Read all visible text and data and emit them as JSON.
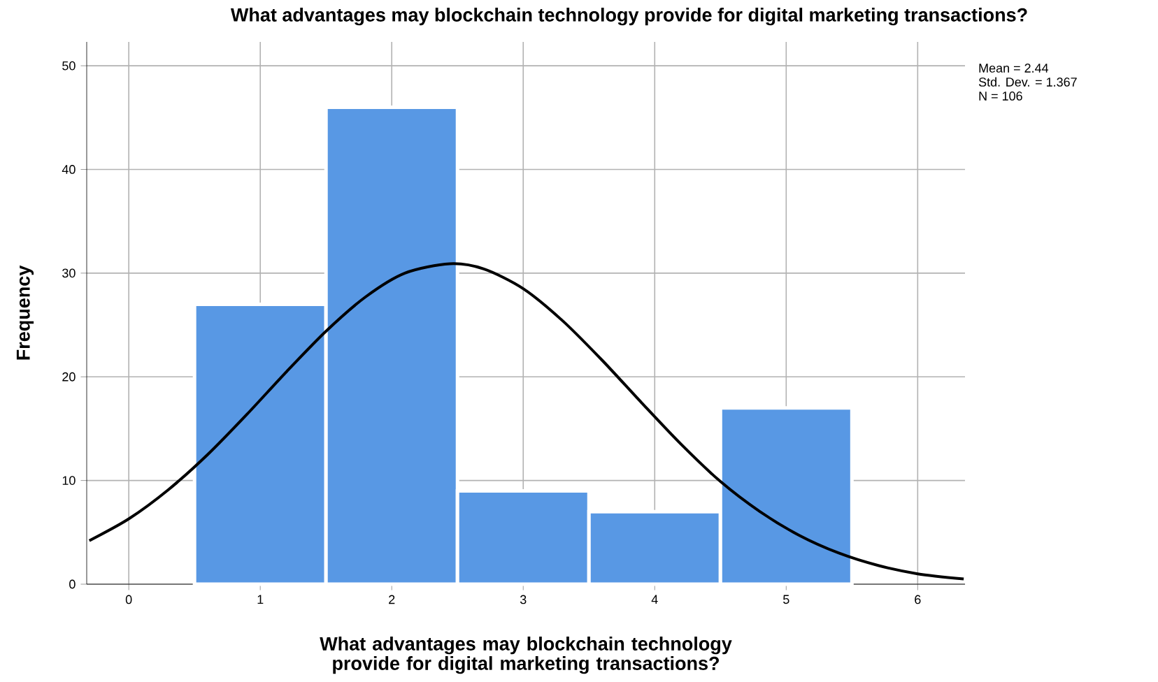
{
  "chart_data": {
    "type": "histogram",
    "title": "What advantages may blockchain technology provide for digital marketing transactions?",
    "xlabel": "What advantages may blockchain technology provide for digital marketing transactions?",
    "ylabel": "Frequency",
    "bins": [
      0.5,
      1.5,
      2.5,
      3.5,
      4.5,
      5.5
    ],
    "values": [
      27,
      46,
      9,
      7,
      17
    ],
    "color": "#5898e4",
    "series": [
      {
        "type": "line",
        "color": "#000000",
        "x": [
          -0.3,
          0,
          0.3,
          0.6,
          0.9,
          1.2,
          1.5,
          1.8,
          2.1,
          2.44,
          2.7,
          3.0,
          3.3,
          3.6,
          3.9,
          4.2,
          4.5,
          4.8,
          5.1,
          5.4,
          5.7,
          6.0,
          6.35
        ],
        "values": [
          4.2,
          6.3,
          9.1,
          12.5,
          16.4,
          20.5,
          24.4,
          27.7,
          30.0,
          30.9,
          30.4,
          28.5,
          25.4,
          21.6,
          17.5,
          13.5,
          9.9,
          7.0,
          4.7,
          3.0,
          1.8,
          1.0,
          0.5
        ]
      }
    ],
    "xlim": [
      -0.32,
      6.36
    ],
    "ylim": [
      0,
      52.3
    ],
    "xticks": [
      0,
      1,
      2,
      3,
      4,
      5,
      6
    ],
    "yticks": [
      0,
      10,
      20,
      30,
      40,
      50
    ],
    "grid": true,
    "marker": "none",
    "annotations": [
      "Mean = 2.44",
      "Std. Dev. = 1.367",
      "N = 106"
    ]
  }
}
